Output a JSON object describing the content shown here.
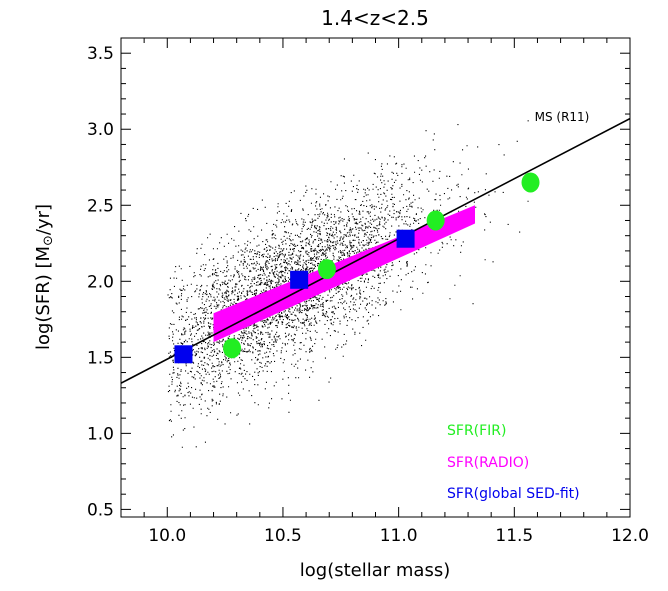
{
  "chart_data": {
    "type": "scatter",
    "title": "1.4<z<2.5",
    "xlabel": "log(stellar mass)",
    "ylabel_parts": {
      "pre": "log(SFR) [M",
      "sun": "⊙",
      "post": "/yr]"
    },
    "xlim": [
      9.8,
      12.0
    ],
    "ylim": [
      0.45,
      3.6
    ],
    "xticks": [
      10.0,
      10.5,
      11.0,
      11.5,
      12.0
    ],
    "xtick_labels": [
      "10.0",
      "10.5",
      "11.0",
      "11.5",
      "12.0"
    ],
    "yticks": [
      0.5,
      1.0,
      1.5,
      2.0,
      2.5,
      3.0,
      3.5
    ],
    "ytick_labels": [
      "0.5",
      "1.0",
      "1.5",
      "2.0",
      "2.5",
      "3.0",
      "3.5"
    ],
    "grid": false,
    "legend_placement": "bottom-right",
    "main_sequence": {
      "label": "MS (R11)",
      "x": [
        9.8,
        12.0
      ],
      "y": [
        1.33,
        3.07
      ],
      "color": "#000000"
    },
    "radio_band": {
      "name": "SFR(RADIO)",
      "color": "#ff00ff",
      "x": [
        10.2,
        11.33
      ],
      "y_upper": [
        1.79,
        2.5
      ],
      "y_lower": [
        1.6,
        2.38
      ]
    },
    "series": [
      {
        "name": "SFR(FIR)",
        "marker": "circle",
        "color": "#22ee22",
        "x": [
          10.28,
          10.69,
          11.16,
          11.57
        ],
        "y": [
          1.56,
          2.08,
          2.4,
          2.65
        ]
      },
      {
        "name": "SFR(global SED-fit)",
        "marker": "square",
        "color": "#0000ee",
        "x": [
          10.07,
          10.57,
          11.03
        ],
        "y": [
          1.52,
          2.01,
          2.28
        ]
      }
    ],
    "background_cloud": {
      "color": "#000000",
      "n_points": 14000,
      "x_center": 10.5,
      "x_spread": 0.32,
      "relation": {
        "slope": 0.79,
        "intercept_at_x": [
          10.0,
          1.54
        ]
      },
      "y_scatter": 0.24,
      "x_range": [
        10.0,
        11.6
      ],
      "y_range": [
        0.85,
        3.1
      ]
    }
  }
}
